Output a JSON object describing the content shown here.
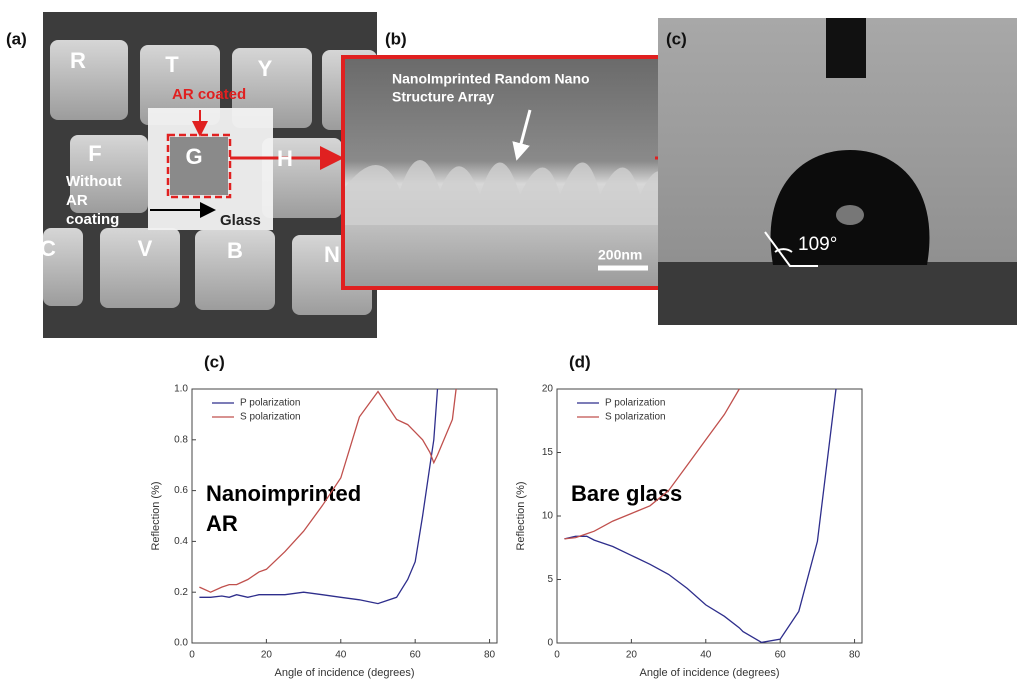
{
  "figure": {
    "panel_labels": [
      "(a)",
      "(b)",
      "(c)"
    ],
    "keys": [
      "R",
      "T",
      "Y",
      "F",
      "G",
      "H",
      "C",
      "V",
      "B",
      "N"
    ],
    "ar_coated": "AR coated",
    "without_ar": [
      "Without",
      "AR",
      "coating"
    ],
    "glass": "Glass",
    "sem_caption": [
      "NanoImprinted Random Nano",
      "Structure Array"
    ],
    "scale_bar": "200nm",
    "contact_angle": "109°"
  },
  "chart_data": [
    {
      "type": "line",
      "title": "(c)",
      "x_label": "Angle of incidence (degrees)",
      "y_label": "Reflection (%)",
      "annotation": [
        "Nanoimprinted",
        "AR"
      ],
      "legend": "upper-left",
      "x": [
        2,
        5,
        8,
        10,
        12,
        15,
        18,
        20,
        25,
        30,
        35,
        40,
        45,
        50,
        55,
        58,
        60,
        62,
        64,
        65,
        66,
        70,
        71
      ],
      "series": [
        {
          "name": "P polarization",
          "color": "#2e2e8c",
          "values": [
            0.18,
            0.18,
            0.185,
            0.18,
            0.19,
            0.18,
            0.19,
            0.19,
            0.19,
            0.2,
            0.19,
            0.18,
            0.17,
            0.155,
            0.18,
            0.25,
            0.32,
            0.5,
            0.7,
            0.8,
            1.0,
            null,
            null
          ]
        },
        {
          "name": "S polarization",
          "color": "#c0504d",
          "values": [
            0.22,
            0.2,
            0.22,
            0.23,
            0.23,
            0.25,
            0.28,
            0.29,
            0.36,
            0.44,
            0.54,
            0.65,
            0.89,
            0.99,
            0.88,
            0.86,
            0.83,
            0.8,
            0.75,
            0.71,
            0.74,
            0.88,
            1.0
          ]
        }
      ],
      "xlim": [
        0,
        82
      ],
      "xticks": [
        0,
        20,
        40,
        60,
        80
      ],
      "ylim": [
        0,
        1
      ],
      "yticks": [
        {
          "value": 0,
          "label": "0.0"
        },
        0.2,
        0.4,
        0.6,
        0.8,
        {
          "value": 1,
          "label": "1.0"
        }
      ]
    },
    {
      "type": "line",
      "title": "(d)",
      "x_label": "Angle of incidence (degrees)",
      "y_label": "Reflection (%)",
      "annotation": [
        "Bare glass"
      ],
      "legend": "upper-left",
      "x": [
        2,
        5,
        8,
        10,
        15,
        20,
        25,
        30,
        35,
        40,
        45,
        49,
        50,
        55,
        60,
        65,
        70,
        75
      ],
      "series": [
        {
          "name": "P polarization",
          "color": "#2e2e8c",
          "values": [
            8.2,
            8.4,
            8.4,
            8.1,
            7.6,
            6.9,
            6.2,
            5.4,
            4.3,
            3,
            2.1,
            1.2,
            0.9,
            0.05,
            0.3,
            2.5,
            8,
            20
          ]
        },
        {
          "name": "S polarization",
          "color": "#c0504d",
          "values": [
            8.2,
            8.3,
            8.6,
            8.8,
            9.6,
            10.2,
            10.8,
            12,
            14,
            16,
            18,
            20,
            null,
            null,
            null,
            null,
            null,
            null
          ]
        }
      ],
      "xlim": [
        0,
        82
      ],
      "xticks": [
        0,
        20,
        40,
        60,
        80
      ],
      "ylim": [
        0,
        20
      ],
      "yticks": [
        0,
        5,
        10,
        15,
        20
      ]
    }
  ]
}
